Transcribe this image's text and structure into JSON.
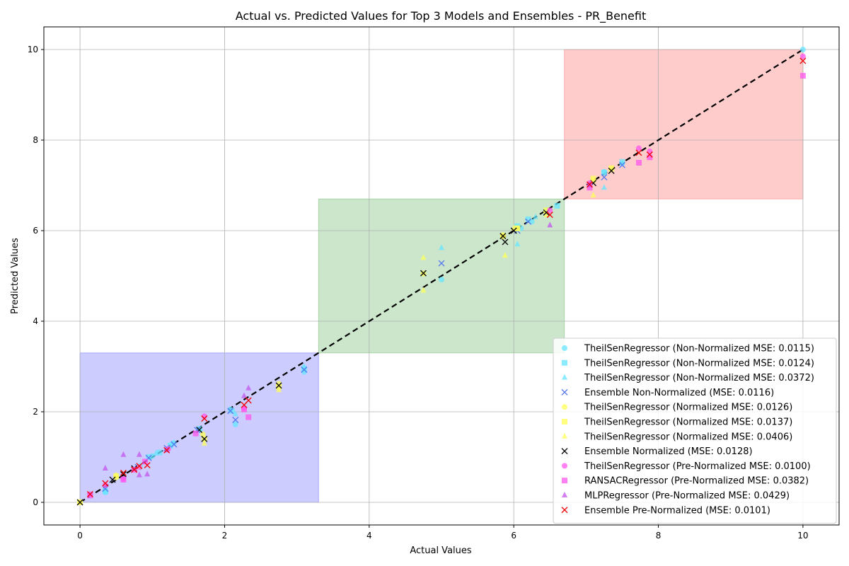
{
  "chart_data": {
    "type": "scatter",
    "title": "Actual vs. Predicted Values for Top 3 Models and Ensembles - PR_Benefit",
    "xlabel": "Actual Values",
    "ylabel": "Predicted Values",
    "xlim": [
      -0.5,
      10.5
    ],
    "ylim": [
      -0.5,
      10.5
    ],
    "xticks": [
      0,
      2,
      4,
      6,
      8,
      10
    ],
    "yticks": [
      0,
      2,
      4,
      6,
      8,
      10
    ],
    "grid": true,
    "legend_position": "lower-right",
    "regions": [
      {
        "x": [
          0,
          3.3
        ],
        "y": [
          0,
          3.3
        ],
        "color": "#0000ff"
      },
      {
        "x": [
          3.3,
          6.7
        ],
        "y": [
          3.3,
          6.7
        ],
        "color": "#008000"
      },
      {
        "x": [
          6.7,
          10
        ],
        "y": [
          6.7,
          10
        ],
        "color": "#ff0000"
      }
    ],
    "reference_line": {
      "x": [
        0,
        10
      ],
      "y": [
        0,
        10
      ],
      "style": "dashed",
      "color": "#000000"
    },
    "series": [
      {
        "name": "TheilSenRegressor (Non-Normalized MSE: 0.0115)",
        "marker": "circle",
        "color": "#66e6ff",
        "x": [
          0.14,
          0.35,
          0.83,
          1.0,
          1.28,
          1.65,
          2.08,
          2.15,
          3.1,
          5.0,
          6.1,
          6.25,
          6.45,
          7.25,
          7.5,
          10
        ],
        "y": [
          0.18,
          0.22,
          0.8,
          1.02,
          1.3,
          1.6,
          2.05,
          1.72,
          2.88,
          4.92,
          6.05,
          6.2,
          6.45,
          7.3,
          7.48,
          10
        ]
      },
      {
        "name": "TheilSenRegressor (Non-Normalized MSE: 0.0124)",
        "marker": "square",
        "color": "#66e6ff",
        "x": [
          0.35,
          0.95,
          1.1,
          1.25,
          1.65,
          2.1,
          3.1,
          6.05,
          6.2,
          6.6,
          7.25,
          7.5
        ],
        "y": [
          0.25,
          1.0,
          1.1,
          1.25,
          1.62,
          2.02,
          2.95,
          6.1,
          6.25,
          6.55,
          7.28,
          7.52
        ]
      },
      {
        "name": "TheilSenRegressor (Non-Normalized MSE: 0.0372)",
        "marker": "triangle",
        "color": "#66e6ff",
        "x": [
          0.35,
          1.05,
          1.3,
          2.15,
          3.1,
          5.0,
          6.05,
          6.3,
          7.25
        ],
        "y": [
          0.3,
          1.08,
          1.32,
          1.95,
          3.0,
          5.62,
          5.7,
          6.3,
          6.95
        ]
      },
      {
        "name": "Ensemble Non-Normalized (MSE: 0.0116)",
        "marker": "x",
        "color": "#5577ee",
        "x": [
          0.35,
          0.8,
          0.95,
          1.2,
          1.3,
          1.62,
          2.08,
          2.15,
          3.1,
          5.0,
          6.05,
          6.2,
          7.25,
          7.5
        ],
        "y": [
          0.3,
          0.78,
          0.98,
          1.2,
          1.28,
          1.6,
          2.02,
          1.82,
          2.93,
          5.28,
          6.0,
          6.2,
          7.18,
          7.45
        ]
      },
      {
        "name": "TheilSenRegressor (Normalized MSE: 0.0126)",
        "marker": "circle",
        "color": "#ffff55",
        "x": [
          0,
          0.5,
          0.82,
          1.7,
          2.75,
          4.75,
          5.85,
          6.05,
          6.45,
          7.1,
          7.35
        ],
        "y": [
          0,
          0.55,
          0.78,
          1.5,
          2.62,
          5.05,
          5.9,
          6.05,
          6.42,
          7.1,
          7.35
        ]
      },
      {
        "name": "TheilSenRegressor (Normalized MSE: 0.0137)",
        "marker": "square",
        "color": "#ffff55",
        "x": [
          0,
          0.5,
          1.72,
          2.75,
          5.85,
          6.05,
          6.45,
          7.1,
          7.35
        ],
        "y": [
          0,
          0.58,
          1.4,
          2.55,
          5.88,
          6.05,
          6.45,
          7.15,
          7.38
        ]
      },
      {
        "name": "TheilSenRegressor (Normalized MSE: 0.0406)",
        "marker": "triangle",
        "color": "#ffff55",
        "x": [
          0,
          0.5,
          1.72,
          2.75,
          4.75,
          4.75,
          5.88,
          6.0,
          6.45,
          7.1
        ],
        "y": [
          0,
          0.6,
          1.3,
          2.48,
          5.4,
          4.68,
          5.45,
          6.05,
          6.35,
          6.78
        ]
      },
      {
        "name": "Ensemble Normalized (MSE: 0.0128)",
        "marker": "x",
        "color": "#000000",
        "x": [
          0,
          0.45,
          0.6,
          0.75,
          1.72,
          1.65,
          2.75,
          4.75,
          5.85,
          5.88,
          6.0,
          6.45,
          7.1,
          7.35
        ],
        "y": [
          0,
          0.5,
          0.62,
          0.75,
          1.4,
          1.6,
          2.58,
          5.06,
          5.88,
          5.75,
          6.0,
          6.4,
          7.05,
          7.32
        ]
      },
      {
        "name": "TheilSenRegressor (Pre-Normalized MSE: 0.0100)",
        "marker": "circle",
        "color": "#ff55ee",
        "x": [
          0.14,
          0.35,
          0.6,
          0.82,
          1.22,
          1.72,
          2.27,
          6.5,
          7.05,
          7.73,
          7.88,
          10
        ],
        "y": [
          0.18,
          0.38,
          0.52,
          0.78,
          1.18,
          1.9,
          2.08,
          6.45,
          7.05,
          7.82,
          7.75,
          9.85
        ]
      },
      {
        "name": "RANSACRegressor (Pre-Normalized MSE: 0.0382)",
        "marker": "square",
        "color": "#ff55ee",
        "x": [
          0.14,
          0.6,
          0.75,
          0.9,
          1.6,
          2.27,
          2.33,
          7.05,
          7.73,
          7.88,
          10
        ],
        "y": [
          0.15,
          0.5,
          0.72,
          0.9,
          1.52,
          2.05,
          1.88,
          6.95,
          7.5,
          7.62,
          9.42
        ]
      },
      {
        "name": "MLPRegressor (Pre-Normalized MSE: 0.0429)",
        "marker": "triangle",
        "color": "#c455ee",
        "x": [
          0.35,
          0.6,
          0.82,
          0.82,
          0.93,
          1.2,
          2.27,
          2.33,
          6.5,
          7.05
        ],
        "y": [
          0.75,
          1.05,
          1.05,
          0.6,
          0.62,
          1.15,
          2.35,
          2.52,
          6.12,
          7.0
        ]
      },
      {
        "name": "Ensemble Pre-Normalized (MSE: 0.0101)",
        "marker": "x",
        "color": "#ee0000",
        "x": [
          0.14,
          0.35,
          0.6,
          0.75,
          0.82,
          0.93,
          1.2,
          1.72,
          2.27,
          2.33,
          6.5,
          7.05,
          7.73,
          7.88,
          10
        ],
        "y": [
          0.18,
          0.42,
          0.65,
          0.72,
          0.8,
          0.82,
          1.15,
          1.85,
          2.15,
          2.25,
          6.35,
          7.02,
          7.72,
          7.68,
          9.75
        ]
      }
    ]
  }
}
